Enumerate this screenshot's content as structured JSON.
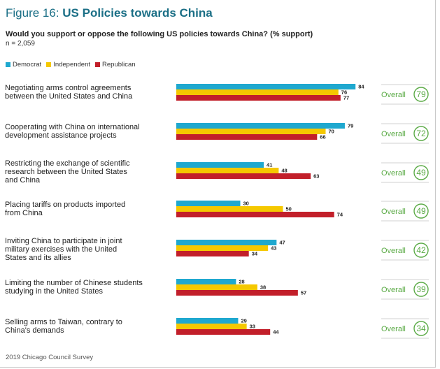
{
  "title": {
    "prefix": "Figure 16:",
    "main": "US Policies towards China"
  },
  "question": "Would you support or oppose the following US policies towards China? (% support)",
  "n_text": "n = 2,059",
  "source": "2019 Chicago Council Survey",
  "overall_label": "Overall",
  "colors": {
    "Democrat": "#1fa8cf",
    "Independent": "#f5c800",
    "Republican": "#c21f2a",
    "overall": "#5aaa45",
    "title": "#1b6f86"
  },
  "chart_data": {
    "type": "bar",
    "orientation": "horizontal",
    "title": "US Policies towards China",
    "legend_position": "top-left",
    "categories": [
      [
        "Negotiating arms control agreements",
        "between the United States and China"
      ],
      [
        "Cooperating with China on international",
        "development assistance projects"
      ],
      [
        "Restricting the exchange of scientific",
        "research between the United States",
        "and China"
      ],
      [
        "Placing tariffs on products imported",
        "from China"
      ],
      [
        "Inviting China to participate in joint",
        "military exercises with the United",
        "States and its allies"
      ],
      [
        "Limiting the number of Chinese students",
        "studying in the United States"
      ],
      [
        "Selling arms to Taiwan, contrary to",
        "China's demands"
      ]
    ],
    "series": [
      {
        "name": "Democrat",
        "values": [
          84,
          79,
          41,
          30,
          47,
          28,
          29
        ]
      },
      {
        "name": "Independent",
        "values": [
          76,
          70,
          48,
          50,
          43,
          38,
          33
        ]
      },
      {
        "name": "Republican",
        "values": [
          77,
          66,
          63,
          74,
          34,
          57,
          44
        ]
      }
    ],
    "overall": [
      79,
      72,
      49,
      49,
      42,
      39,
      34
    ],
    "xlim": [
      0,
      100
    ],
    "grid": false
  }
}
